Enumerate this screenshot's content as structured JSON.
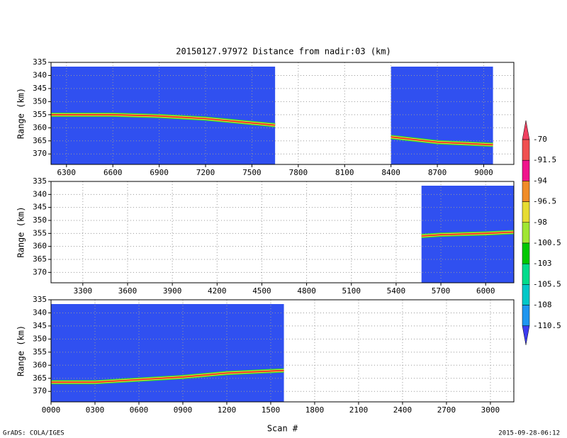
{
  "title": "20150127.97972    Distance from nadir:03 (km)",
  "credit": "GrADS: COLA/IGES",
  "timestamp": "2015-09-28-06:12",
  "colorbar": {
    "levels": [
      -70,
      -91.5,
      -94,
      -96.5,
      -98,
      -100.5,
      -103,
      -105.5,
      -108,
      -110.5
    ],
    "colors": [
      "#f04060",
      "#f05050",
      "#f0148c",
      "#f08c28",
      "#e6dc32",
      "#a0e632",
      "#00c800",
      "#00dc8c",
      "#00c8c8",
      "#1e96f0",
      "#3c3cf0"
    ]
  },
  "chart_data": [
    {
      "type": "line",
      "ylabel": "Range (km)",
      "swath_color": "#3050f0",
      "line_colors": [
        "#30d030",
        "#f0e040",
        "#e82020"
      ],
      "grid": true,
      "xlim": [
        6200,
        9195
      ],
      "xticks": [
        6300,
        6600,
        6900,
        7200,
        7500,
        7800,
        8100,
        8400,
        8700,
        9000
      ],
      "ylim": [
        335,
        374
      ],
      "yticks": [
        335,
        340,
        345,
        350,
        355,
        360,
        365,
        370
      ],
      "swaths": [
        {
          "start": 6200,
          "end": 7650
        },
        {
          "start": 8400,
          "end": 9060
        }
      ],
      "x": [
        6200,
        6600,
        6900,
        7200,
        7650,
        8000,
        8400,
        8700,
        9060
      ],
      "values": [
        355,
        355,
        355.5,
        356.5,
        359,
        null,
        363.5,
        365.5,
        366.5
      ]
    },
    {
      "type": "line",
      "ylabel": "Range (km)",
      "swath_color": "#3050f0",
      "line_colors": [
        "#30d030",
        "#f0e040",
        "#e82020"
      ],
      "grid": true,
      "xlim": [
        3087,
        6189
      ],
      "xticks": [
        3300,
        3600,
        3900,
        4200,
        4500,
        4800,
        5100,
        5400,
        5700,
        6000
      ],
      "ylim": [
        335,
        374
      ],
      "yticks": [
        335,
        340,
        345,
        350,
        355,
        360,
        365,
        370
      ],
      "swaths": [
        {
          "start": 5570,
          "end": 6189
        }
      ],
      "x": [
        5570,
        5700,
        6000,
        6189
      ],
      "values": [
        356,
        355.5,
        355,
        354.5
      ]
    },
    {
      "type": "line",
      "ylabel": "Range (km)",
      "xlabel": "Scan #",
      "swath_color": "#3050f0",
      "line_colors": [
        "#30d030",
        "#f0e040",
        "#e82020"
      ],
      "grid": true,
      "xlim": [
        0,
        3160
      ],
      "xticks": [
        {
          "value": 0,
          "label": "0000"
        },
        {
          "value": 300,
          "label": "0300"
        },
        {
          "value": 600,
          "label": "0600"
        },
        {
          "value": 900,
          "label": "0900"
        },
        1200,
        1500,
        1800,
        2100,
        2400,
        2700,
        3000
      ],
      "ylim": [
        335,
        374
      ],
      "yticks": [
        335,
        340,
        345,
        350,
        355,
        360,
        365,
        370
      ],
      "swaths": [
        {
          "start": 0,
          "end": 1590
        }
      ],
      "x": [
        0,
        300,
        600,
        900,
        1200,
        1590
      ],
      "values": [
        366.5,
        366.5,
        365.5,
        364.5,
        363,
        362
      ]
    }
  ]
}
